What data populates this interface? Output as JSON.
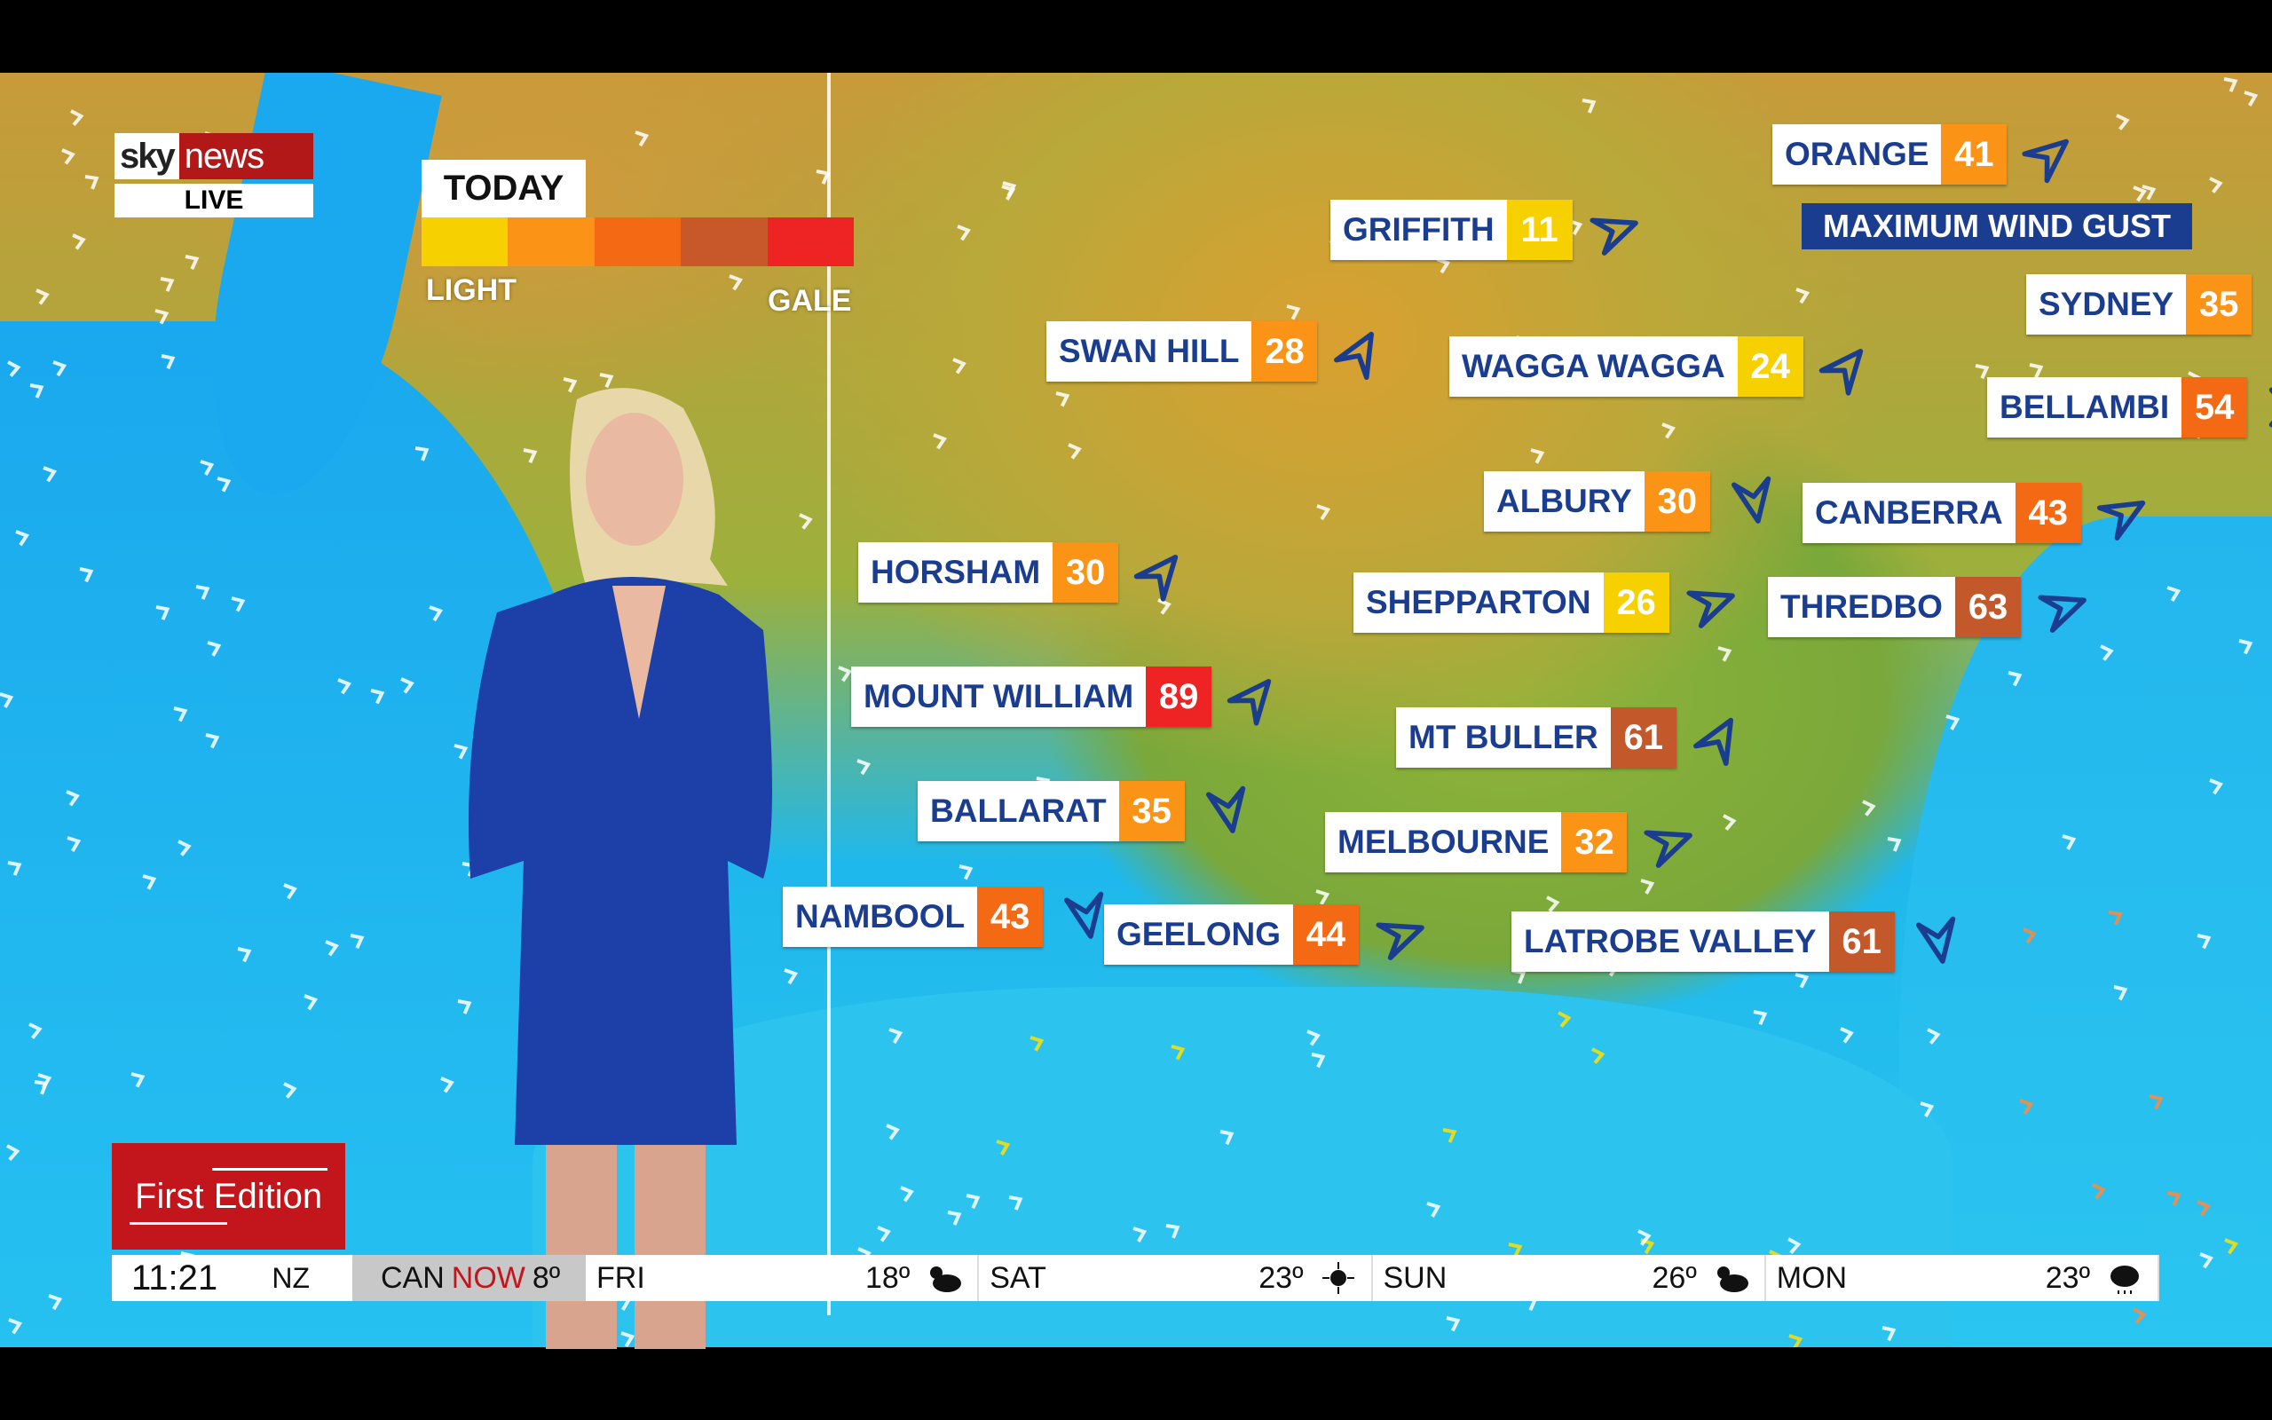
{
  "logo": {
    "sky": "sky",
    "news": "news",
    "live": "LIVE"
  },
  "legend": {
    "title": "TODAY",
    "low": "LIGHT",
    "high": "GALE",
    "colors": [
      "#f7d000",
      "#fb9416",
      "#f46a14",
      "#c8582a",
      "#ee2424"
    ]
  },
  "banner": "MAXIMUM WIND GUST",
  "colors": {
    "yellow": "#f7d000",
    "orange": "#fb9416",
    "orange_red": "#f46a14",
    "brown": "#c3582a",
    "red": "#ee2424",
    "label_text": "#1a3d8f"
  },
  "locations": [
    {
      "name": "ORANGE",
      "value": "41",
      "level": "orange",
      "arrow_deg": -40
    },
    {
      "name": "GRIFFITH",
      "value": "11",
      "level": "yellow",
      "arrow_deg": -20
    },
    {
      "name": "SYDNEY",
      "value": "35",
      "level": "orange",
      "arrow_deg": 0
    },
    {
      "name": "SWAN HILL",
      "value": "28",
      "level": "orange",
      "arrow_deg": -60
    },
    {
      "name": "WAGGA WAGGA",
      "value": "24",
      "level": "yellow",
      "arrow_deg": -50
    },
    {
      "name": "BELLAMBI",
      "value": "54",
      "level": "orange_red",
      "arrow_deg": 0
    },
    {
      "name": "ALBURY",
      "value": "30",
      "level": "orange",
      "arrow_deg": 80
    },
    {
      "name": "CANBERRA",
      "value": "43",
      "level": "orange_red",
      "arrow_deg": -30
    },
    {
      "name": "HORSHAM",
      "value": "30",
      "level": "orange",
      "arrow_deg": -50
    },
    {
      "name": "SHEPPARTON",
      "value": "26",
      "level": "yellow",
      "arrow_deg": -20
    },
    {
      "name": "THREDBO",
      "value": "63",
      "level": "brown",
      "arrow_deg": -20
    },
    {
      "name": "MOUNT WILLIAM",
      "value": "89",
      "level": "red",
      "arrow_deg": -50
    },
    {
      "name": "MT BULLER",
      "value": "61",
      "level": "brown",
      "arrow_deg": -60
    },
    {
      "name": "BALLARAT",
      "value": "35",
      "level": "orange",
      "arrow_deg": 80
    },
    {
      "name": "MELBOURNE",
      "value": "32",
      "level": "orange",
      "arrow_deg": -20
    },
    {
      "name": "NAMBOOL",
      "value": "43",
      "level": "orange_red",
      "arrow_deg": 80
    },
    {
      "name": "GEELONG",
      "value": "44",
      "level": "orange_red",
      "arrow_deg": -20
    },
    {
      "name": "LATROBE VALLEY",
      "value": "61",
      "level": "brown",
      "arrow_deg": 80
    }
  ],
  "program": "First Edition",
  "ticker": {
    "time": "11:21",
    "tz": "NZ",
    "city": "CAN",
    "now": "NOW",
    "now_temp": "8º",
    "days": [
      {
        "day": "FRI",
        "temp": "18º",
        "icon": "partly-cloudy-icon"
      },
      {
        "day": "SAT",
        "temp": "23º",
        "icon": "sun-icon"
      },
      {
        "day": "SUN",
        "temp": "26º",
        "icon": "partly-cloudy-icon"
      },
      {
        "day": "MON",
        "temp": "23º",
        "icon": "rain-cloud-icon"
      }
    ]
  }
}
